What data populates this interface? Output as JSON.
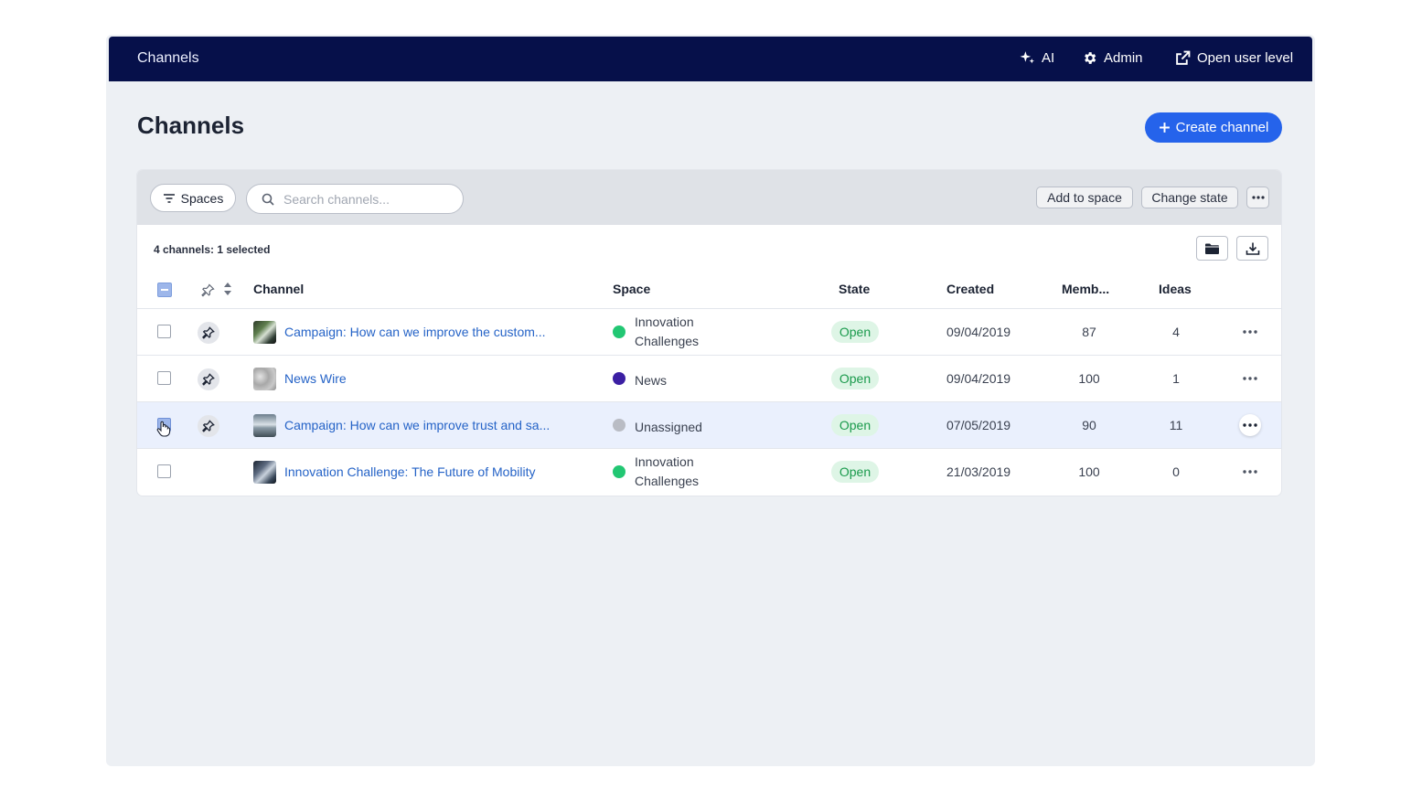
{
  "topbar": {
    "title": "Channels",
    "ai_label": "AI",
    "admin_label": "Admin",
    "open_user_label": "Open user level"
  },
  "page": {
    "title": "Channels",
    "create_label": "Create channel"
  },
  "toolbar": {
    "spaces_label": "Spaces",
    "search_placeholder": "Search channels...",
    "add_to_space_label": "Add to space",
    "change_state_label": "Change state"
  },
  "summary": "4 channels: 1 selected",
  "columns": {
    "channel": "Channel",
    "space": "Space",
    "state": "State",
    "created": "Created",
    "members": "Memb...",
    "ideas": "Ideas"
  },
  "rows": [
    {
      "name": "Campaign: How can we improve the custom...",
      "space": "Innovation Challenges",
      "space_color": "#22c773",
      "state": "Open",
      "created": "09/04/2019",
      "members": "87",
      "ideas": "4",
      "pinned": true,
      "selected": false
    },
    {
      "name": "News Wire",
      "space": "News",
      "space_color": "#3b1fa3",
      "state": "Open",
      "created": "09/04/2019",
      "members": "100",
      "ideas": "1",
      "pinned": true,
      "selected": false
    },
    {
      "name": "Campaign: How can we improve trust and sa...",
      "space": "Unassigned",
      "space_color": "#b9bcc4",
      "state": "Open",
      "created": "07/05/2019",
      "members": "90",
      "ideas": "11",
      "pinned": true,
      "selected": true
    },
    {
      "name": "Innovation Challenge: The Future of Mobility",
      "space": "Innovation Challenges",
      "space_color": "#22c773",
      "state": "Open",
      "created": "21/03/2019",
      "members": "100",
      "ideas": "0",
      "pinned": false,
      "selected": false
    }
  ],
  "colors": {
    "topbar_bg": "#06104a",
    "accent": "#2563eb",
    "link": "#2563c7",
    "open_state_bg": "#def5e6",
    "open_state_text": "#1a9a4c",
    "selected_row_bg": "#eaf0fd"
  }
}
